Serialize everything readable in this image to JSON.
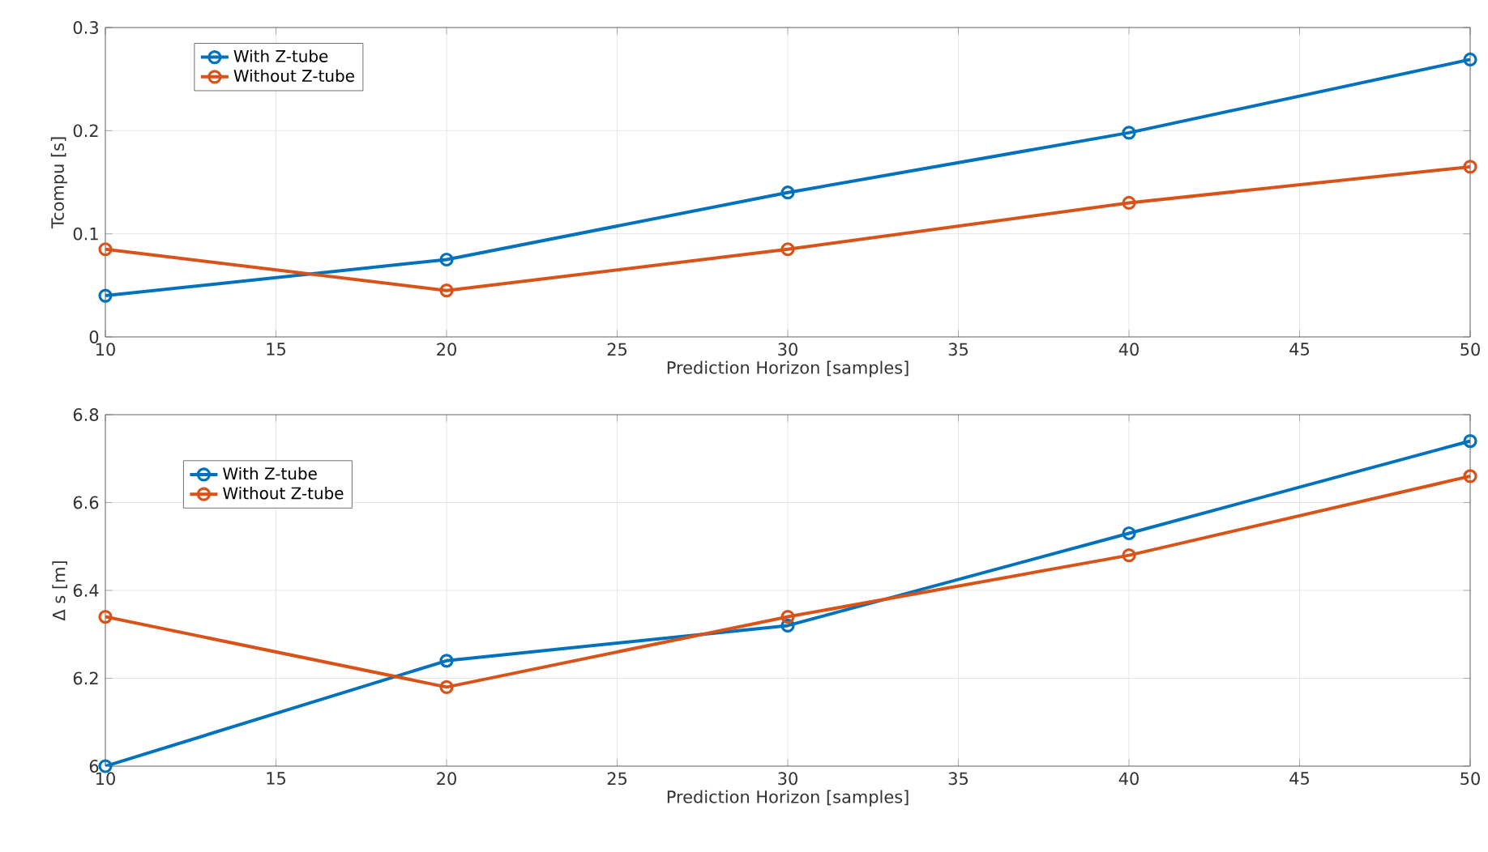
{
  "chart_data": [
    {
      "type": "line",
      "xlabel": "Prediction Horizon [samples]",
      "ylabel": "Tcompu [s]",
      "x": [
        10,
        20,
        30,
        40,
        50
      ],
      "series": [
        {
          "name": "With Z-tube",
          "color": "#0072bd",
          "values": [
            0.04,
            0.075,
            0.14,
            0.198,
            0.269
          ]
        },
        {
          "name": "Without Z-tube",
          "color": "#d95319",
          "values": [
            0.085,
            0.045,
            0.085,
            0.13,
            0.165
          ]
        }
      ],
      "xlim": [
        10,
        50
      ],
      "xticks": [
        10,
        15,
        20,
        25,
        30,
        35,
        40,
        45,
        50
      ],
      "ylim": [
        0,
        0.3
      ],
      "yticks": [
        0,
        0.1,
        0.2,
        0.3
      ],
      "grid": true,
      "legend": "top left",
      "marker": "circle",
      "line_style": "solid"
    },
    {
      "type": "line",
      "xlabel": "Prediction Horizon [samples]",
      "ylabel": "Δ s [m]",
      "x": [
        10,
        20,
        30,
        40,
        50
      ],
      "series": [
        {
          "name": "With Z-tube",
          "color": "#0072bd",
          "values": [
            6.0,
            6.24,
            6.32,
            6.53,
            6.74
          ]
        },
        {
          "name": "Without Z-tube",
          "color": "#d95319",
          "values": [
            6.34,
            6.18,
            6.34,
            6.48,
            6.66
          ]
        }
      ],
      "xlim": [
        10,
        50
      ],
      "xticks": [
        10,
        15,
        20,
        25,
        30,
        35,
        40,
        45,
        50
      ],
      "ylim": [
        6,
        6.8
      ],
      "yticks": [
        6,
        6.2,
        6.4,
        6.6,
        6.8
      ],
      "grid": true,
      "legend": "top left",
      "marker": "circle",
      "line_style": "solid"
    }
  ]
}
